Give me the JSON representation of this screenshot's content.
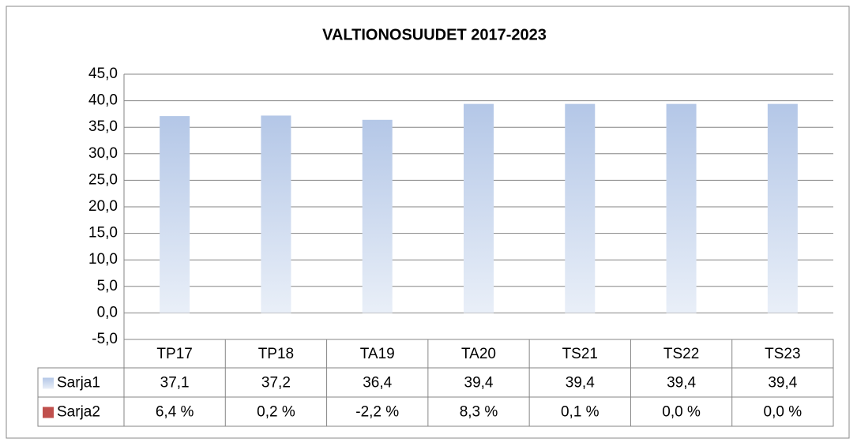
{
  "chart_data": {
    "type": "bar",
    "title": "VALTIONOSUUDET 2017-2023",
    "categories": [
      "TP17",
      "TP18",
      "TA19",
      "TA20",
      "TS21",
      "TS22",
      "TS23"
    ],
    "series": [
      {
        "name": "Sarja1",
        "color": "#b4c7e7",
        "values": [
          37.1,
          37.2,
          36.4,
          39.4,
          39.4,
          39.4,
          39.4
        ],
        "value_labels": [
          "37,1",
          "37,2",
          "36,4",
          "39,4",
          "39,4",
          "39,4",
          "39,4"
        ]
      },
      {
        "name": "Sarja2",
        "color": "#c0504d",
        "values": [
          6.4,
          0.2,
          -2.2,
          8.3,
          0.1,
          0.0,
          0.0
        ],
        "value_labels": [
          "6,4 %",
          "0,2 %",
          "-2,2 %",
          "8,3 %",
          "0,1 %",
          "0,0 %",
          "0,0 %"
        ]
      }
    ],
    "ylim": [
      -5,
      45
    ],
    "yticks": [
      {
        "value": -5,
        "label": "-5,0"
      },
      {
        "value": 0,
        "label": "0,0"
      },
      {
        "value": 5,
        "label": "5,0"
      },
      {
        "value": 10,
        "label": "10,0"
      },
      {
        "value": 15,
        "label": "15,0"
      },
      {
        "value": 20,
        "label": "20,0"
      },
      {
        "value": 25,
        "label": "25,0"
      },
      {
        "value": 30,
        "label": "30,0"
      },
      {
        "value": 35,
        "label": "35,0"
      },
      {
        "value": 40,
        "label": "40,0"
      },
      {
        "value": 45,
        "label": "45,0"
      }
    ],
    "grid": true,
    "data_table": true
  }
}
